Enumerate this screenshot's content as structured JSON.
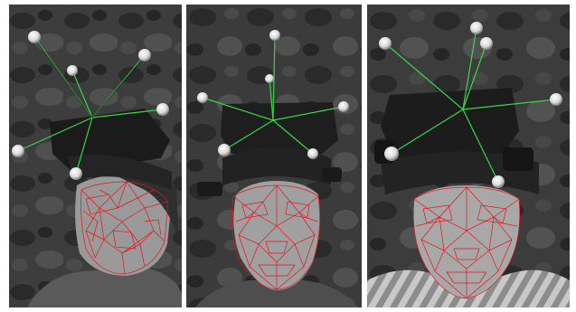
{
  "figure": {
    "panels": [
      {
        "id": "left",
        "view": "profile-three-quarter"
      },
      {
        "id": "center",
        "view": "frontal-slight-tilt"
      },
      {
        "id": "right",
        "view": "frontal"
      }
    ]
  },
  "colors": {
    "mesh": "#e8141c",
    "tracker_lines": "#39d64a",
    "marker_ball": "#e8e8e8",
    "background": "#3a3a3a"
  }
}
